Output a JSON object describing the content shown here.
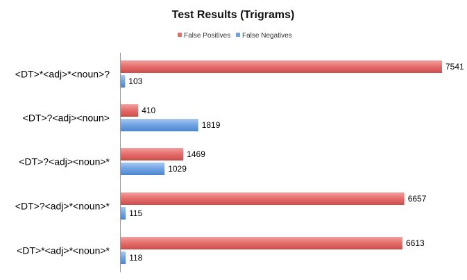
{
  "chart_data": {
    "type": "bar",
    "orientation": "horizontal",
    "title": "Test Results (Trigrams)",
    "xlabel": "",
    "ylabel": "",
    "categories": [
      "<DT>*<adj>*<noun>?",
      "<DT>?<adj><noun>",
      "<DT>?<adj><noun>*",
      "<DT>?<adj>*<noun>*",
      "<DT>*<adj>*<noun>*"
    ],
    "series": [
      {
        "name": "False Positives",
        "color": "#e46c6a",
        "values": [
          7541,
          410,
          1469,
          6657,
          6613
        ]
      },
      {
        "name": "False Negatives",
        "color": "#6fa3e3",
        "values": [
          103,
          1819,
          1029,
          115,
          118
        ]
      }
    ],
    "xlim": [
      0,
      7700
    ],
    "grid": false,
    "legend_position": "top-center",
    "data_labels": true
  }
}
